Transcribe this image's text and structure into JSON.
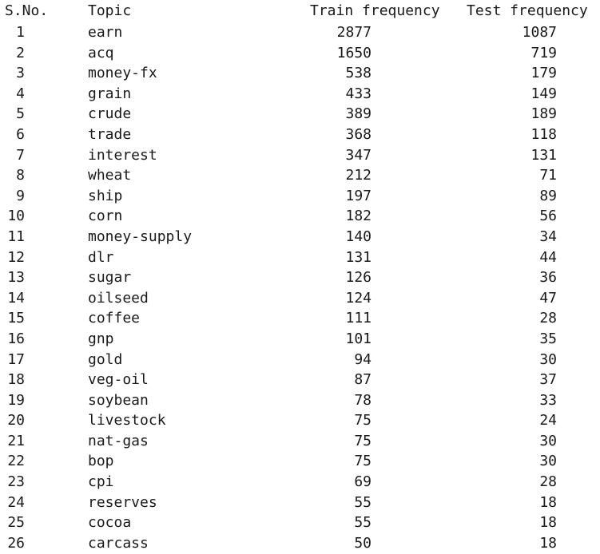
{
  "headers": {
    "sno": "S.No.",
    "topic": "Topic",
    "train": "Train frequency",
    "test": "Test frequency"
  },
  "rows": [
    {
      "sno": "1",
      "topic": "earn",
      "train": "2877",
      "test": "1087"
    },
    {
      "sno": "2",
      "topic": "acq",
      "train": "1650",
      "test": "719"
    },
    {
      "sno": "3",
      "topic": "money-fx",
      "train": "538",
      "test": "179"
    },
    {
      "sno": "4",
      "topic": "grain",
      "train": "433",
      "test": "149"
    },
    {
      "sno": "5",
      "topic": "crude",
      "train": "389",
      "test": "189"
    },
    {
      "sno": "6",
      "topic": "trade",
      "train": "368",
      "test": "118"
    },
    {
      "sno": "7",
      "topic": "interest",
      "train": "347",
      "test": "131"
    },
    {
      "sno": "8",
      "topic": "wheat",
      "train": "212",
      "test": "71"
    },
    {
      "sno": "9",
      "topic": "ship",
      "train": "197",
      "test": "89"
    },
    {
      "sno": "10",
      "topic": "corn",
      "train": "182",
      "test": "56"
    },
    {
      "sno": "11",
      "topic": "money-supply",
      "train": "140",
      "test": "34"
    },
    {
      "sno": "12",
      "topic": "dlr",
      "train": "131",
      "test": "44"
    },
    {
      "sno": "13",
      "topic": "sugar",
      "train": "126",
      "test": "36"
    },
    {
      "sno": "14",
      "topic": "oilseed",
      "train": "124",
      "test": "47"
    },
    {
      "sno": "15",
      "topic": "coffee",
      "train": "111",
      "test": "28"
    },
    {
      "sno": "16",
      "topic": "gnp",
      "train": "101",
      "test": "35"
    },
    {
      "sno": "17",
      "topic": "gold",
      "train": "94",
      "test": "30"
    },
    {
      "sno": "18",
      "topic": "veg-oil",
      "train": "87",
      "test": "37"
    },
    {
      "sno": "19",
      "topic": "soybean",
      "train": "78",
      "test": "33"
    },
    {
      "sno": "20",
      "topic": "livestock",
      "train": "75",
      "test": "24"
    },
    {
      "sno": "21",
      "topic": "nat-gas",
      "train": "75",
      "test": "30"
    },
    {
      "sno": "22",
      "topic": "bop",
      "train": "75",
      "test": "30"
    },
    {
      "sno": "23",
      "topic": "cpi",
      "train": "69",
      "test": "28"
    },
    {
      "sno": "24",
      "topic": "reserves",
      "train": "55",
      "test": "18"
    },
    {
      "sno": "25",
      "topic": "cocoa",
      "train": "55",
      "test": "18"
    },
    {
      "sno": "26",
      "topic": "carcass",
      "train": "50",
      "test": "18"
    }
  ]
}
